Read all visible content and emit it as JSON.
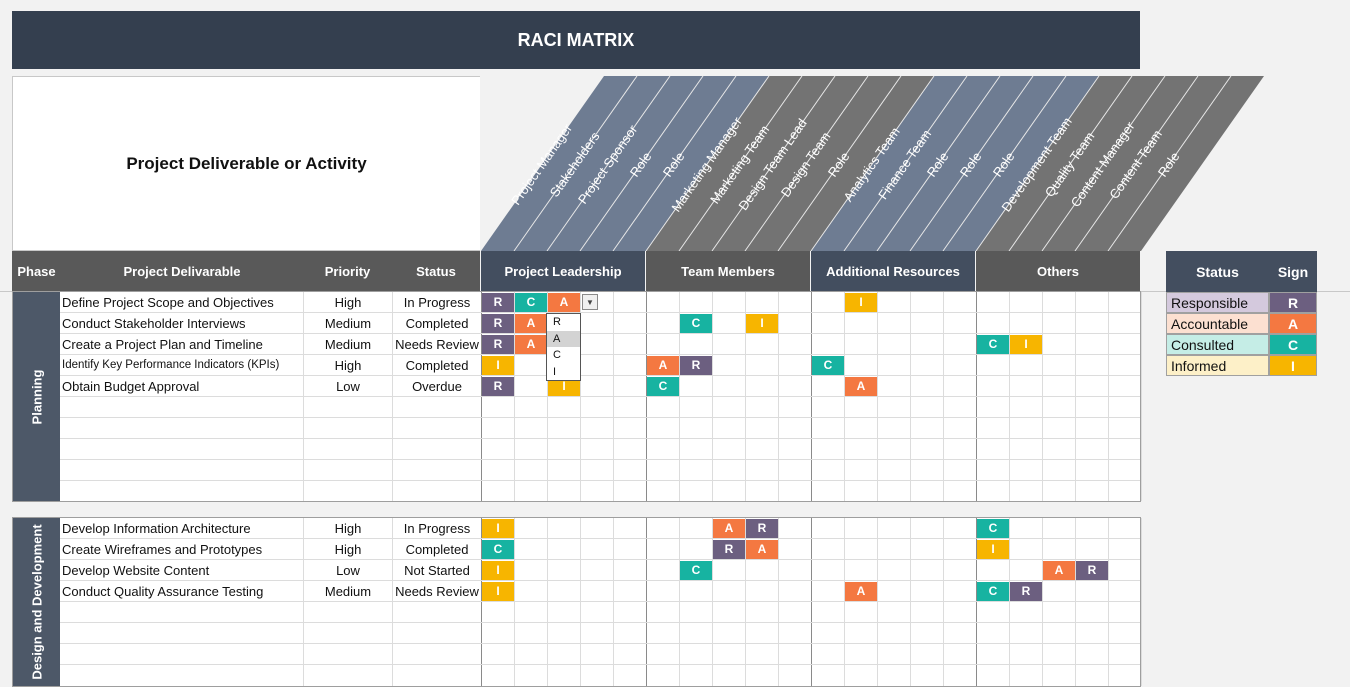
{
  "title": "RACI MATRIX",
  "activity_header": "Project Deliverable or Activity",
  "roles": [
    "Project Manager",
    "Stakeholders",
    "Project Sponsor",
    "Role",
    "Role",
    "Marketing Manager",
    "Marketing Team",
    "Design Team Lead",
    "Design Team",
    "Role",
    "Analytics Team",
    "Finance Team",
    "Role",
    "Role",
    "Role",
    "Development Team",
    "Quality Team",
    "Content Manager",
    "Content Team",
    "Role"
  ],
  "columns": {
    "phase": "Phase",
    "deliverable": "Project Delivarable",
    "priority": "Priority",
    "status": "Status"
  },
  "groups": [
    "Project Leadership",
    "Team Members",
    "Additional Resources",
    "Others"
  ],
  "phases": [
    {
      "name": "Planning",
      "rows": [
        {
          "task": "Define Project Scope and Objectives",
          "priority": "High",
          "status": "In Progress",
          "small": false,
          "assign": [
            "R",
            "C",
            "A",
            "",
            "",
            "",
            "",
            "",
            "",
            "",
            "",
            "I",
            "",
            "",
            "",
            "",
            "",
            "",
            "",
            ""
          ]
        },
        {
          "task": "Conduct Stakeholder Interviews",
          "priority": "Medium",
          "status": "Completed",
          "small": false,
          "assign": [
            "R",
            "A",
            "R",
            "",
            "",
            "",
            "C",
            "",
            "I",
            "",
            "",
            "",
            "",
            "",
            "",
            "",
            "",
            "",
            "",
            ""
          ]
        },
        {
          "task": "Create a Project Plan and Timeline",
          "priority": "Medium",
          "status": "Needs Review",
          "small": false,
          "assign": [
            "R",
            "A",
            "",
            "",
            "",
            "",
            "",
            "",
            "",
            "",
            "",
            "",
            "",
            "",
            "",
            "C",
            "I",
            "",
            "",
            ""
          ]
        },
        {
          "task": "Identify Key Performance Indicators (KPIs)",
          "priority": "High",
          "status": "Completed",
          "small": true,
          "assign": [
            "I",
            "",
            "",
            "",
            "",
            "A",
            "R",
            "",
            "",
            "",
            "C",
            "",
            "",
            "",
            "",
            "",
            "",
            "",
            "",
            ""
          ]
        },
        {
          "task": "Obtain Budget Approval",
          "priority": "Low",
          "status": "Overdue",
          "small": false,
          "assign": [
            "R",
            "",
            "I",
            "",
            "",
            "C",
            "",
            "",
            "",
            "",
            "",
            "A",
            "",
            "",
            "",
            "",
            "",
            "",
            "",
            ""
          ]
        }
      ]
    },
    {
      "name": "Design and Development",
      "rows": [
        {
          "task": "Develop Information Architecture",
          "priority": "High",
          "status": "In Progress",
          "small": false,
          "assign": [
            "I",
            "",
            "",
            "",
            "",
            "",
            "",
            "A",
            "R",
            "",
            "",
            "",
            "",
            "",
            "",
            "C",
            "",
            "",
            "",
            ""
          ]
        },
        {
          "task": "Create Wireframes and Prototypes",
          "priority": "High",
          "status": "Completed",
          "small": false,
          "assign": [
            "C",
            "",
            "",
            "",
            "",
            "",
            "",
            "R",
            "A",
            "",
            "",
            "",
            "",
            "",
            "",
            "I",
            "",
            "",
            "",
            ""
          ]
        },
        {
          "task": "Develop Website Content",
          "priority": "Low",
          "status": "Not Started",
          "small": false,
          "assign": [
            "I",
            "",
            "",
            "",
            "",
            "",
            "C",
            "",
            "",
            "",
            "",
            "",
            "",
            "",
            "",
            "",
            "",
            "A",
            "R",
            ""
          ]
        },
        {
          "task": "Conduct Quality Assurance Testing",
          "priority": "Medium",
          "status": "Needs Review",
          "small": false,
          "assign": [
            "I",
            "",
            "",
            "",
            "",
            "",
            "",
            "",
            "",
            "",
            "",
            "A",
            "",
            "",
            "",
            "C",
            "R",
            "",
            "",
            ""
          ]
        }
      ]
    }
  ],
  "dropdown": {
    "options": [
      "R",
      "A",
      "C",
      "I"
    ],
    "selected": "A"
  },
  "legend": {
    "header_status": "Status",
    "header_sign": "Sign",
    "items": [
      {
        "label": "Responsible",
        "sign": "R",
        "bg": "#d4c9dd",
        "color": "#6c5f80"
      },
      {
        "label": "Accountable",
        "sign": "A",
        "bg": "#fce0d1",
        "color": "#f47841"
      },
      {
        "label": "Consulted",
        "sign": "C",
        "bg": "#c5ede6",
        "color": "#17b3a1"
      },
      {
        "label": "Informed",
        "sign": "I",
        "bg": "#fdf0c8",
        "color": "#f7b500"
      }
    ]
  },
  "colors": {
    "title_bg": "#343f4f",
    "header_bg": "#595959",
    "group_slate": "#6e7c92",
    "group_gray": "#737373"
  }
}
